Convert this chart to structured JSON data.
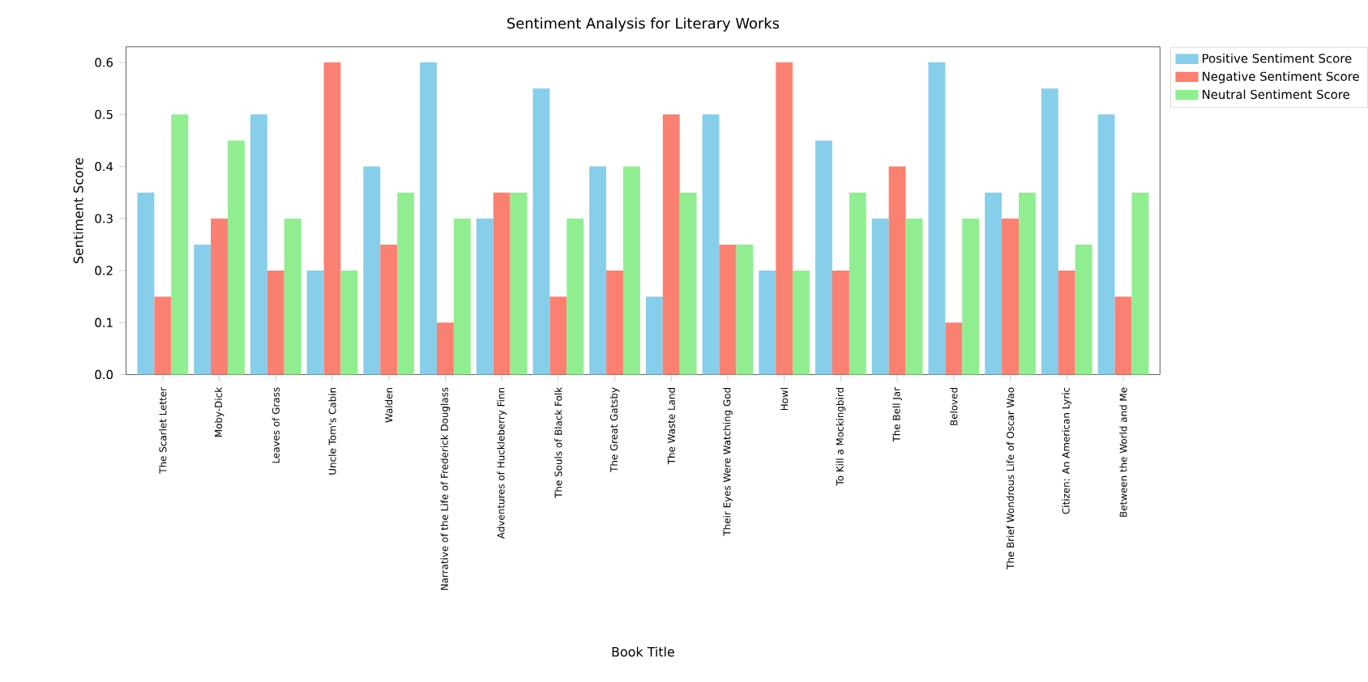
{
  "chart_data": {
    "type": "bar",
    "title": "Sentiment Analysis for Literary Works",
    "xlabel": "Book Title",
    "ylabel": "Sentiment Score",
    "categories": [
      "The Scarlet Letter",
      "Moby-Dick",
      "Leaves of Grass",
      "Uncle Tom's Cabin",
      "Walden",
      "Narrative of the Life of Frederick Douglass",
      "Adventures of Huckleberry Finn",
      "The Souls of Black Folk",
      "The Great Gatsby",
      "The Waste Land",
      "Their Eyes Were Watching God",
      "Howl",
      "To Kill a Mockingbird",
      "The Bell Jar",
      "Beloved",
      "The Brief Wondrous Life of Oscar Wao",
      "Citizen: An American Lyric",
      "Between the World and Me"
    ],
    "series": [
      {
        "name": "Positive Sentiment Score",
        "color": "#87ceeb",
        "values": [
          0.35,
          0.25,
          0.5,
          0.2,
          0.4,
          0.6,
          0.3,
          0.55,
          0.4,
          0.15,
          0.5,
          0.2,
          0.45,
          0.3,
          0.6,
          0.35,
          0.55,
          0.5
        ]
      },
      {
        "name": "Negative Sentiment Score",
        "color": "#fa8072",
        "values": [
          0.15,
          0.3,
          0.2,
          0.6,
          0.25,
          0.1,
          0.35,
          0.15,
          0.2,
          0.5,
          0.25,
          0.6,
          0.2,
          0.4,
          0.1,
          0.3,
          0.2,
          0.15
        ]
      },
      {
        "name": "Neutral Sentiment Score",
        "color": "#90ee90",
        "values": [
          0.5,
          0.45,
          0.3,
          0.2,
          0.35,
          0.3,
          0.35,
          0.3,
          0.4,
          0.35,
          0.25,
          0.2,
          0.35,
          0.3,
          0.3,
          0.35,
          0.25,
          0.35
        ]
      }
    ],
    "ylim": [
      0,
      0.63
    ],
    "yticks": [
      {
        "value": 0,
        "label": "0.0"
      },
      0.1,
      0.2,
      0.3,
      0.4,
      0.5,
      0.6
    ],
    "legend": "right"
  }
}
